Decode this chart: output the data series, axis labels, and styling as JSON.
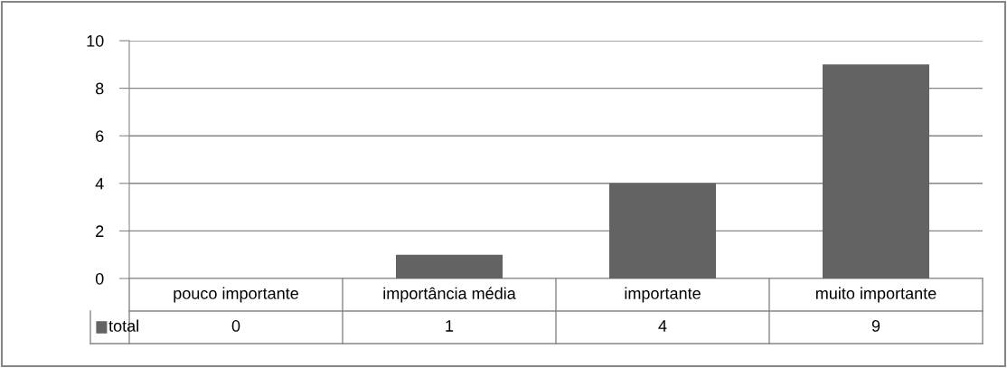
{
  "chart_data": {
    "type": "bar",
    "categories": [
      "pouco importante",
      "importância média",
      "importante",
      "muito importante"
    ],
    "series": [
      {
        "name": "total",
        "color": "#636363",
        "values": [
          0,
          1,
          4,
          9
        ]
      }
    ],
    "ylim": [
      0,
      10
    ],
    "yticks": [
      0,
      2,
      4,
      6,
      8,
      10
    ],
    "grid": "y",
    "data_labels": true,
    "legend": "bottom"
  }
}
